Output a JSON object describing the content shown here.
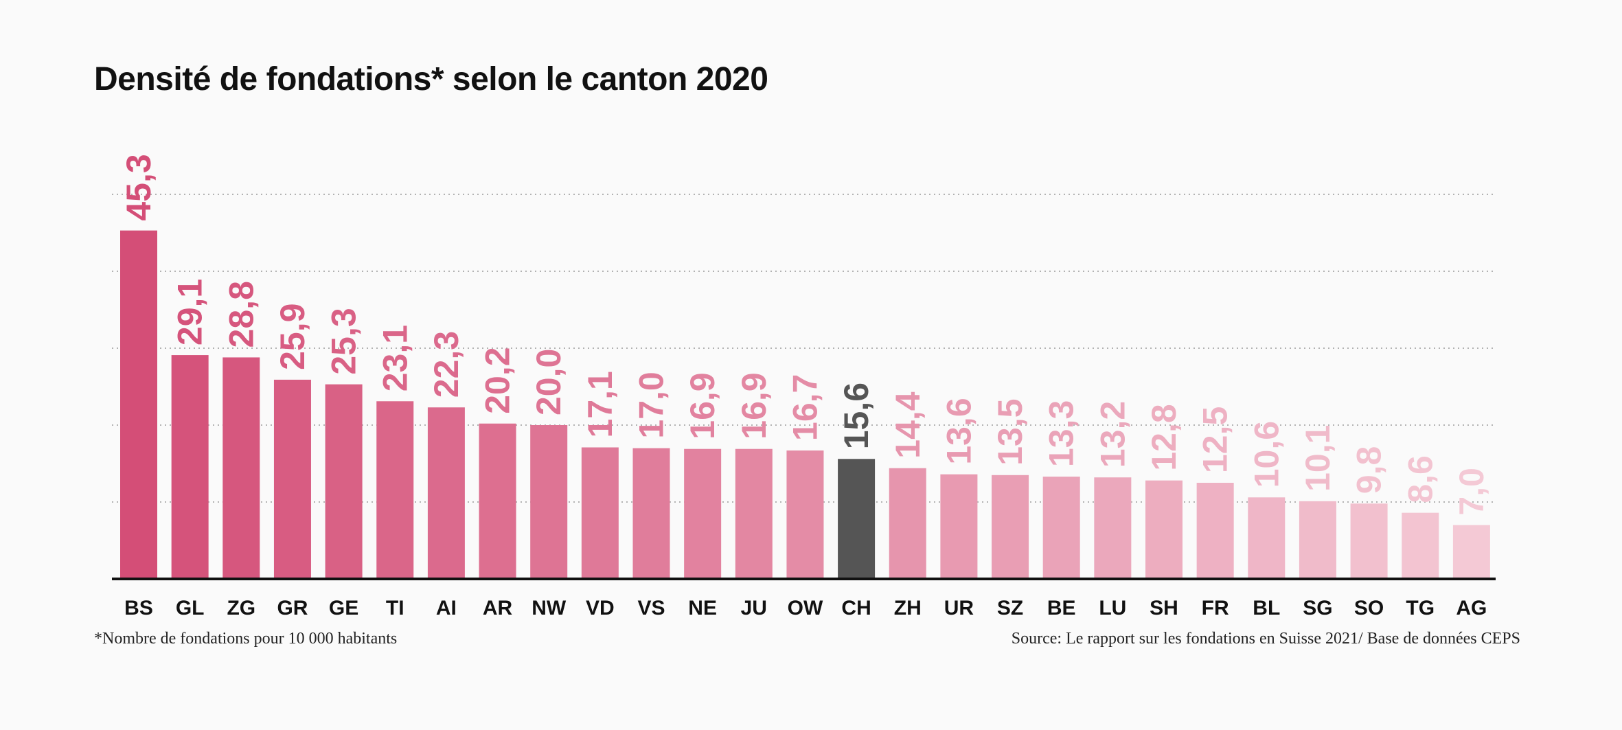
{
  "title": "Densité de fondations* selon le canton 2020",
  "footnote": "*Nombre de fondations pour 10 000 habitants",
  "source": "Source: Le rapport sur les fondations en Suisse 2021/ Base de données CEPS",
  "colors": {
    "gradient_start": "#d44e77",
    "gradient_end": "#f4c9d5",
    "highlight": "#555555",
    "axis": "#111111",
    "grid": "#999999",
    "background": "#fafafa"
  },
  "chart_data": {
    "type": "bar",
    "title": "Densité de fondations* selon le canton 2020",
    "categories": [
      "BS",
      "GL",
      "ZG",
      "GR",
      "GE",
      "TI",
      "AI",
      "AR",
      "NW",
      "VD",
      "VS",
      "NE",
      "JU",
      "OW",
      "CH",
      "ZH",
      "UR",
      "SZ",
      "BE",
      "LU",
      "SH",
      "FR",
      "BL",
      "SG",
      "SO",
      "TG",
      "AG"
    ],
    "values": [
      45.3,
      29.1,
      28.8,
      25.9,
      25.3,
      23.1,
      22.3,
      20.2,
      20.0,
      17.1,
      17.0,
      16.9,
      16.9,
      16.7,
      15.6,
      14.4,
      13.6,
      13.5,
      13.3,
      13.2,
      12.8,
      12.5,
      10.6,
      10.1,
      9.8,
      8.6,
      7.0
    ],
    "labels": [
      "45,3",
      "29,1",
      "28,8",
      "25,9",
      "25,3",
      "23,1",
      "22,3",
      "20,2",
      "20,0",
      "17,1",
      "17,0",
      "16,9",
      "16,9",
      "16,7",
      "15,6",
      "14,4",
      "13,6",
      "13,5",
      "13,3",
      "13,2",
      "12,8",
      "12,5",
      "10,6",
      "10,1",
      "9,8",
      "8,6",
      "7,0"
    ],
    "highlight_category": "CH",
    "ylim": [
      0,
      50
    ],
    "grid": true,
    "grid_values": [
      10,
      20,
      30,
      40,
      50
    ],
    "xlabel": "",
    "ylabel": ""
  }
}
